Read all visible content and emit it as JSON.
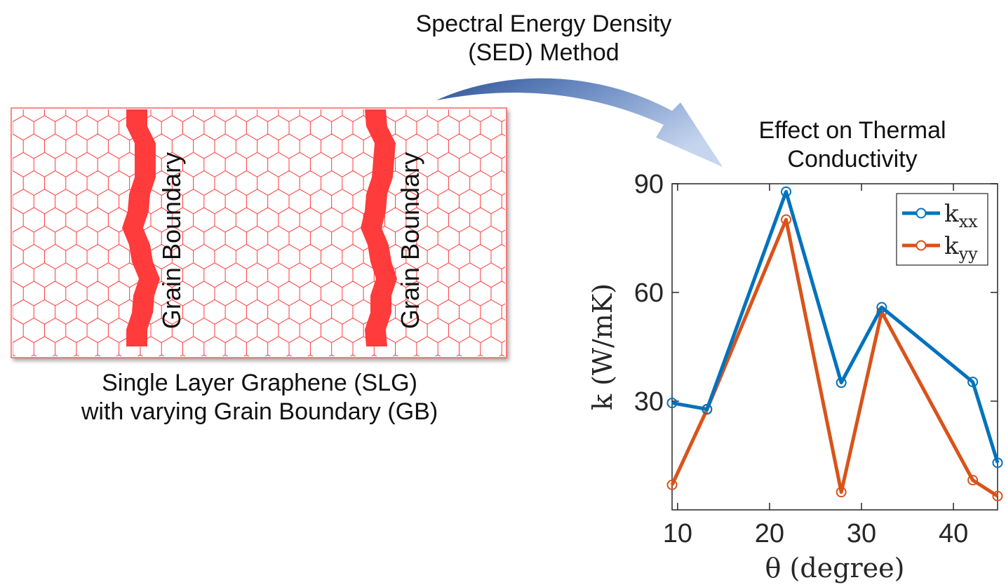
{
  "titles": {
    "sed_line1": "Spectral Energy Density",
    "sed_line2": "(SED) Method",
    "effect_line1": "Effect on Thermal",
    "effect_line2": "Conductivity",
    "slg_line1": "Single Layer Graphene (SLG)",
    "slg_line2": "with varying Grain Boundary (GB)",
    "grain_boundary_label": "Grain Boundary"
  },
  "colors": {
    "lattice": "#ff3b3b",
    "grain_boundary": "#ff3b3b",
    "kxx": "#0072bd",
    "kyy": "#d95319",
    "arrow_light": "#b4c7e7",
    "arrow_dark": "#2f5597"
  },
  "chart_data": {
    "type": "line",
    "x": [
      9.4,
      13.2,
      21.8,
      27.8,
      32.2,
      42.1,
      44.8
    ],
    "series": [
      {
        "name": "k_xx",
        "sub": "xx",
        "values": [
          29.5,
          27.8,
          87.8,
          35.1,
          55.9,
          35.3,
          13.0
        ]
      },
      {
        "name": "k_yy",
        "sub": "yy",
        "values": [
          6.9,
          27.7,
          80.1,
          4.9,
          54.6,
          8.2,
          3.8
        ]
      }
    ],
    "xlabel": "θ (degree)",
    "ylabel": "k (W/mK)",
    "xlim": [
      9.4,
      44.8
    ],
    "ylim": [
      0,
      90
    ],
    "xticks": [
      10,
      20,
      30,
      40
    ],
    "yticks": [
      30,
      60,
      90
    ],
    "legend_position": "top-right",
    "grid": false
  }
}
